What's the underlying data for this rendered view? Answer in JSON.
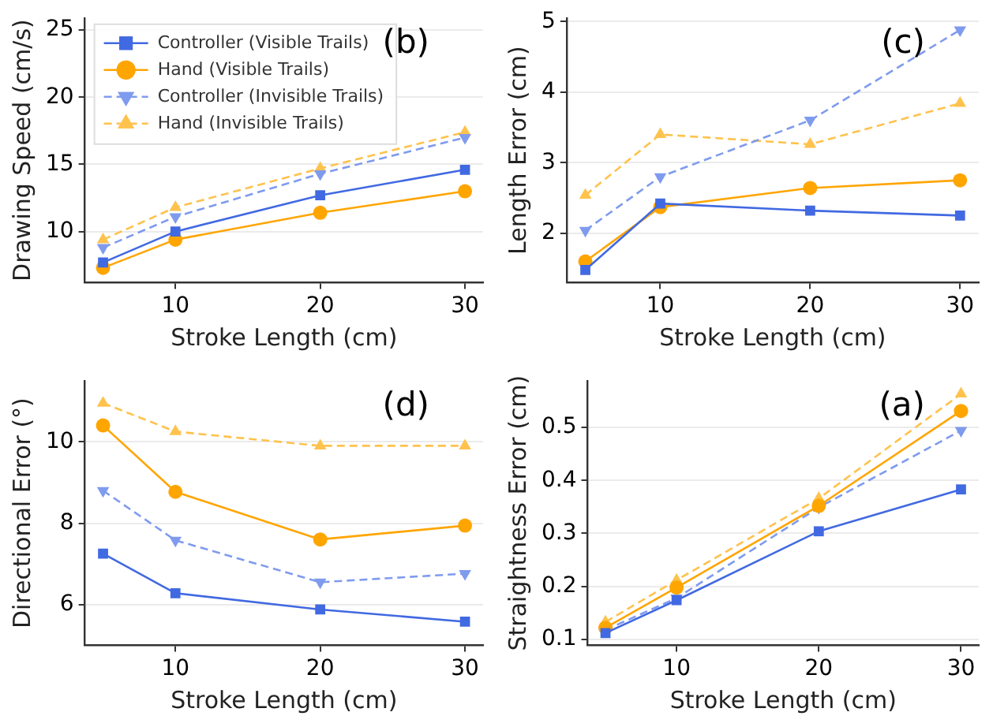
{
  "chart_data": [
    {
      "type": "line",
      "xlabel": "Stroke Length (cm)",
      "ylabel": "Drawing Speed (cm/s)",
      "annotations": [
        "(b)"
      ],
      "x": [
        5,
        10,
        20,
        30
      ],
      "xlim": [
        3.75,
        31.25
      ],
      "xticks": [
        10,
        20,
        30
      ],
      "ylim": [
        6.2,
        25.9
      ],
      "yticks": [
        10,
        15,
        20,
        25
      ],
      "grid": "y",
      "legend": "top left",
      "series": [
        {
          "name": "Controller (Visible Trails)",
          "color": "#4169e1",
          "marker": "square",
          "line_style": "solid",
          "values": [
            7.7,
            10.0,
            12.7,
            14.6
          ]
        },
        {
          "name": "Hand (Visible Trails)",
          "color": "#ffa500",
          "marker": "circle",
          "line_style": "solid",
          "values": [
            7.3,
            9.4,
            11.4,
            13.0
          ]
        },
        {
          "name": "Controller (Invisible Trails)",
          "color": "#7f9bee",
          "marker": "triangle_down",
          "line_style": "dashed",
          "values": [
            8.8,
            11.1,
            14.3,
            17.0
          ]
        },
        {
          "name": "Hand (Invisible Trails)",
          "color": "#ffc24d",
          "marker": "triangle",
          "line_style": "dashed",
          "values": [
            9.4,
            11.8,
            14.7,
            17.4
          ]
        }
      ]
    },
    {
      "type": "line",
      "xlabel": "Stroke Length (cm)",
      "ylabel": "Length Error (cm)",
      "annotations": [
        "(c)"
      ],
      "x": [
        5,
        10,
        20,
        30
      ],
      "xlim": [
        3.75,
        31.25
      ],
      "xticks": [
        10,
        20,
        30
      ],
      "ylim": [
        1.3,
        5.05
      ],
      "yticks": [
        2,
        3,
        4,
        5
      ],
      "grid": "y",
      "series": [
        {
          "color": "#4169e1",
          "marker": "square",
          "line_style": "solid",
          "values": [
            1.48,
            2.42,
            2.32,
            2.25
          ]
        },
        {
          "color": "#ffa500",
          "marker": "circle",
          "line_style": "solid",
          "values": [
            1.6,
            2.37,
            2.64,
            2.75
          ]
        },
        {
          "color": "#7f9bee",
          "marker": "triangle_down",
          "line_style": "dashed",
          "values": [
            2.04,
            2.8,
            3.6,
            4.88
          ]
        },
        {
          "color": "#ffc24d",
          "marker": "triangle",
          "line_style": "dashed",
          "values": [
            2.54,
            3.4,
            3.26,
            3.84
          ]
        }
      ]
    },
    {
      "type": "line",
      "xlabel": "Stroke Length (cm)",
      "ylabel": "Directional Error (°)",
      "annotations": [
        "(d)"
      ],
      "x": [
        5,
        10,
        20,
        30
      ],
      "xlim": [
        3.75,
        31.25
      ],
      "xticks": [
        10,
        20,
        30
      ],
      "ylim": [
        5.0,
        11.5
      ],
      "yticks": [
        6,
        8,
        10
      ],
      "grid": "y",
      "series": [
        {
          "color": "#4169e1",
          "marker": "square",
          "line_style": "solid",
          "values": [
            7.25,
            6.28,
            5.88,
            5.58
          ]
        },
        {
          "color": "#ffa500",
          "marker": "circle",
          "line_style": "solid",
          "values": [
            10.4,
            8.77,
            7.6,
            7.94
          ]
        },
        {
          "color": "#7f9bee",
          "marker": "triangle_down",
          "line_style": "dashed",
          "values": [
            8.8,
            7.58,
            6.55,
            6.76
          ]
        },
        {
          "color": "#ffc24d",
          "marker": "triangle",
          "line_style": "dashed",
          "values": [
            10.95,
            10.25,
            9.9,
            9.9
          ]
        }
      ]
    },
    {
      "type": "line",
      "xlabel": "Stroke Length (cm)",
      "ylabel": "Straightness Error (cm)",
      "annotations": [
        "(a)"
      ],
      "x": [
        5,
        10,
        20,
        30
      ],
      "xlim": [
        3.75,
        31.25
      ],
      "xticks": [
        10,
        20,
        30
      ],
      "ylim": [
        0.089,
        0.588
      ],
      "yticks": [
        0.1,
        0.2,
        0.3,
        0.4,
        0.5
      ],
      "grid": "y",
      "series": [
        {
          "color": "#4169e1",
          "marker": "square",
          "line_style": "solid",
          "values": [
            0.112,
            0.174,
            0.304,
            0.383
          ]
        },
        {
          "color": "#ffa500",
          "marker": "circle",
          "line_style": "solid",
          "values": [
            0.122,
            0.198,
            0.352,
            0.531
          ]
        },
        {
          "color": "#7f9bee",
          "marker": "triangle_down",
          "line_style": "dashed",
          "values": [
            0.118,
            0.178,
            0.349,
            0.494
          ]
        },
        {
          "color": "#ffc24d",
          "marker": "triangle",
          "line_style": "dashed",
          "values": [
            0.133,
            0.212,
            0.366,
            0.563
          ]
        }
      ]
    }
  ]
}
